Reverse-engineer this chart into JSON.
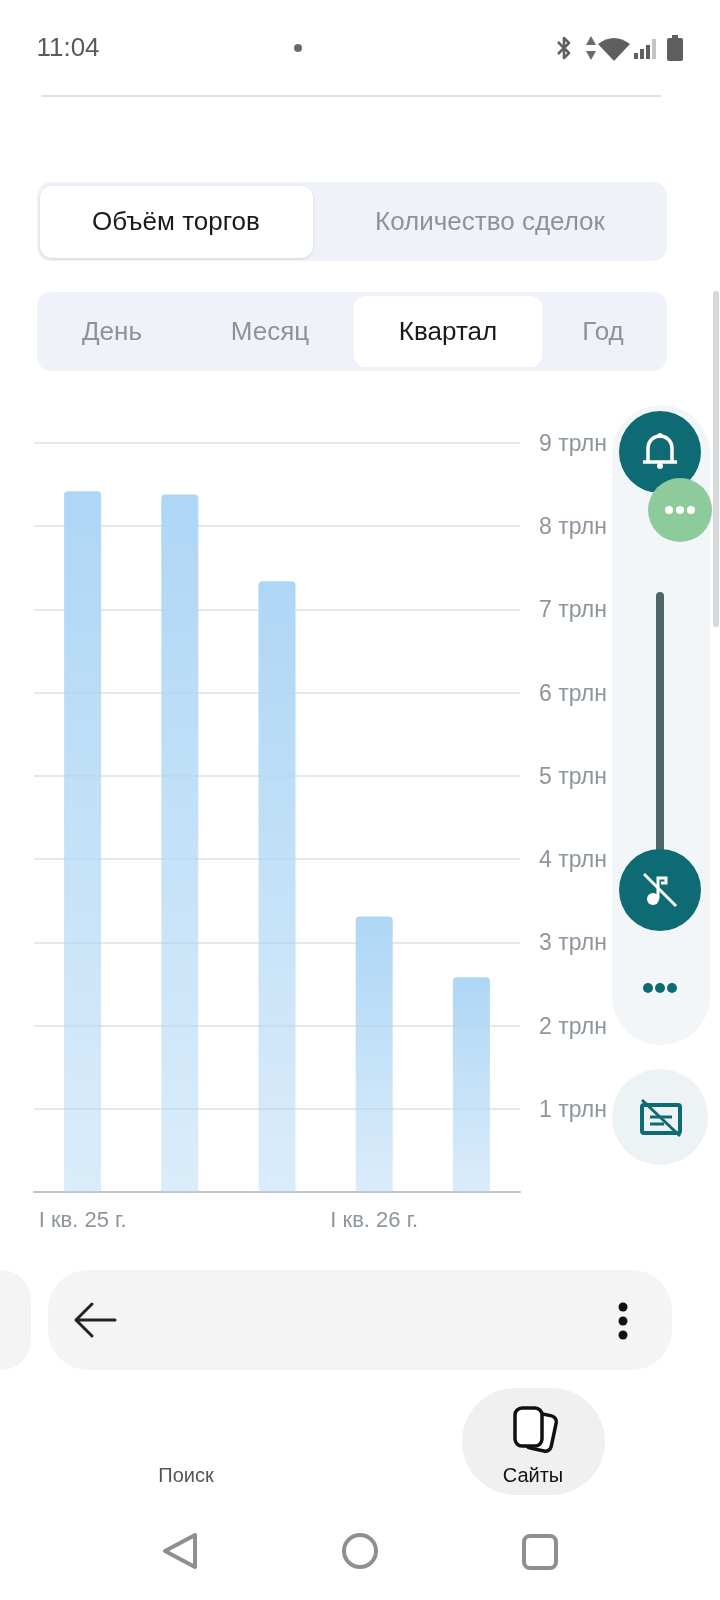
{
  "chart_data": {
    "type": "bar",
    "categories": [
      "I кв. 25 г.",
      null,
      null,
      "I кв. 26 г.",
      null
    ],
    "values": [
      8.42,
      8.38,
      7.34,
      3.31,
      2.58
    ],
    "color": "#aed6f5",
    "ylim": [
      0,
      9
    ],
    "yticks": [
      {
        "value": 1,
        "label": "1 трлн"
      },
      {
        "value": 2,
        "label": "2 трлн"
      },
      {
        "value": 3,
        "label": "3 трлн"
      },
      {
        "value": 4,
        "label": "4 трлн"
      },
      {
        "value": 5,
        "label": "5 трлн"
      },
      {
        "value": 6,
        "label": "6 трлн"
      },
      {
        "value": 7,
        "label": "7 трлн"
      },
      {
        "value": 8,
        "label": "8 трлн"
      },
      {
        "value": 9,
        "label": "9 трлн"
      }
    ],
    "grid": "y",
    "annotations": [
      "Объём торгов",
      "Количество сделок",
      "День",
      "Месяц",
      "Квартал",
      "Год",
      "11:04",
      "Поиск",
      "Сайты"
    ]
  }
}
